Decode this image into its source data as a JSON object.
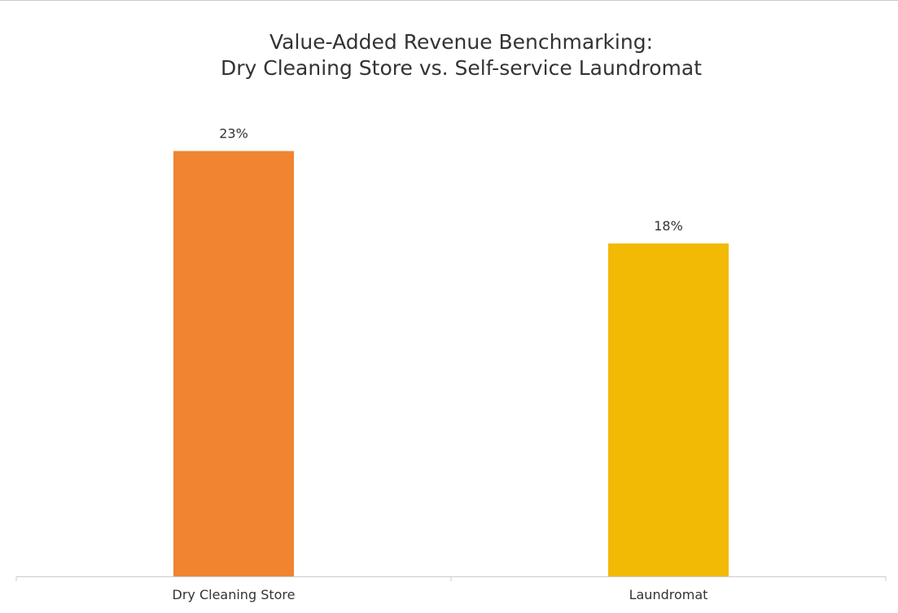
{
  "chart_data": {
    "type": "bar",
    "title": [
      "Value-Added Revenue Benchmarking:",
      "Dry Cleaning Store vs. Self-service Laundromat"
    ],
    "categories": [
      "Dry Cleaning Store",
      "Laundromat"
    ],
    "values": [
      23,
      18
    ],
    "labels": [
      "23%",
      "18%"
    ],
    "colors": [
      "#f08431",
      "#f2b905"
    ],
    "ylim": [
      0,
      25.4
    ],
    "grid": false
  }
}
